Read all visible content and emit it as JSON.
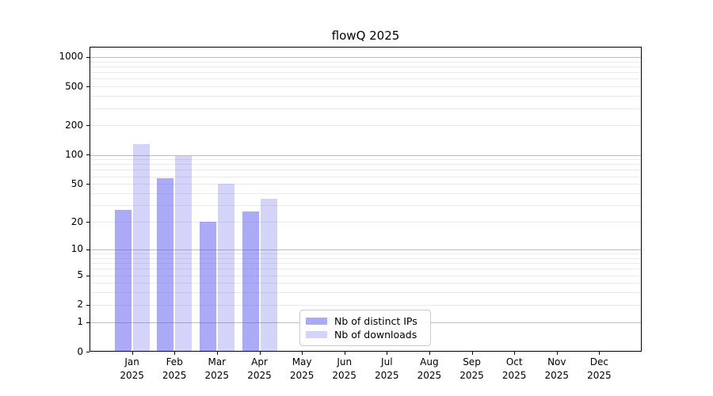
{
  "chart_data": {
    "type": "bar",
    "title": "flowQ 2025",
    "categories": [
      "Jan 2025",
      "Feb 2025",
      "Mar 2025",
      "Apr 2025",
      "May 2025",
      "Jun 2025",
      "Jul 2025",
      "Aug 2025",
      "Sep 2025",
      "Oct 2025",
      "Nov 2025",
      "Dec 2025"
    ],
    "series": [
      {
        "name": "Nb of distinct IPs",
        "color": "rgba(85,85,238,0.5)",
        "values": [
          27,
          57,
          20,
          26,
          0,
          0,
          0,
          0,
          0,
          0,
          0,
          0
        ]
      },
      {
        "name": "Nb of downloads",
        "color": "rgba(85,85,238,0.25)",
        "values": [
          130,
          97,
          50,
          35,
          0,
          0,
          0,
          0,
          0,
          0,
          0,
          0
        ]
      }
    ],
    "xlabel": "",
    "ylabel": "",
    "yscale": "log10(1+y)",
    "ylim": [
      0,
      1270
    ],
    "y_ticks": [
      0,
      1,
      2,
      5,
      10,
      20,
      50,
      100,
      200,
      500,
      1000
    ],
    "y_major_gridlines": [
      1,
      10,
      100,
      1000
    ],
    "y_minor_gridlines": [
      2,
      3,
      4,
      5,
      6,
      7,
      8,
      9,
      20,
      30,
      40,
      50,
      60,
      70,
      80,
      90,
      200,
      300,
      400,
      500,
      600,
      700,
      800,
      900
    ],
    "grid": "horizontal",
    "legend_position": "lower center inside"
  },
  "colors": {
    "background": "#ffffff",
    "text": "#000000",
    "spine": "#000000",
    "major_gridline": "#bdbdbd",
    "minor_gridline": "#eaeaea",
    "legend_border": "#cccccc",
    "bar_distinct_ips_on_white": "#aaaaf6",
    "bar_downloads_on_white": "#d4d4fb"
  }
}
